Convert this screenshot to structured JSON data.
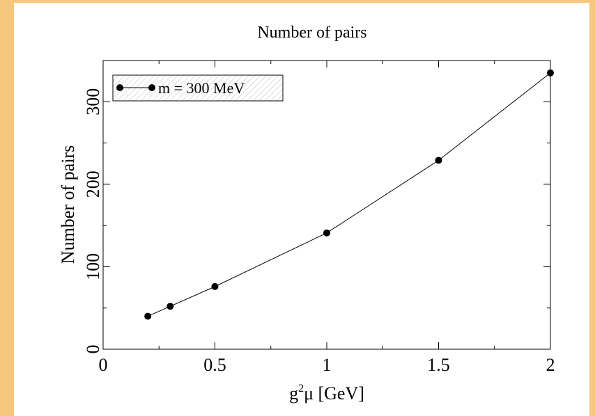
{
  "chart_data": {
    "type": "line",
    "title": "Number of pairs",
    "xlabel": "g",
    "xlabel_sup": "2",
    "xlabel_rest": "μ [GeV]",
    "ylabel": "Number of pairs",
    "xlim": [
      0,
      2
    ],
    "ylim": [
      0,
      350
    ],
    "xticks": [
      0,
      0.5,
      1,
      1.5,
      2
    ],
    "xtick_labels": [
      "0",
      "0.5",
      "1",
      "1.5",
      "2"
    ],
    "yticks": [
      0,
      100,
      200,
      300
    ],
    "ytick_labels": [
      "0",
      "100",
      "200",
      "300"
    ],
    "grid": false,
    "legend_position": "top-left",
    "series": [
      {
        "name": "m = 300 MeV",
        "color": "#000000",
        "x": [
          0.2,
          0.3,
          0.5,
          1.0,
          1.5,
          2.0
        ],
        "y": [
          40,
          52,
          76,
          141,
          229,
          335
        ]
      }
    ]
  }
}
